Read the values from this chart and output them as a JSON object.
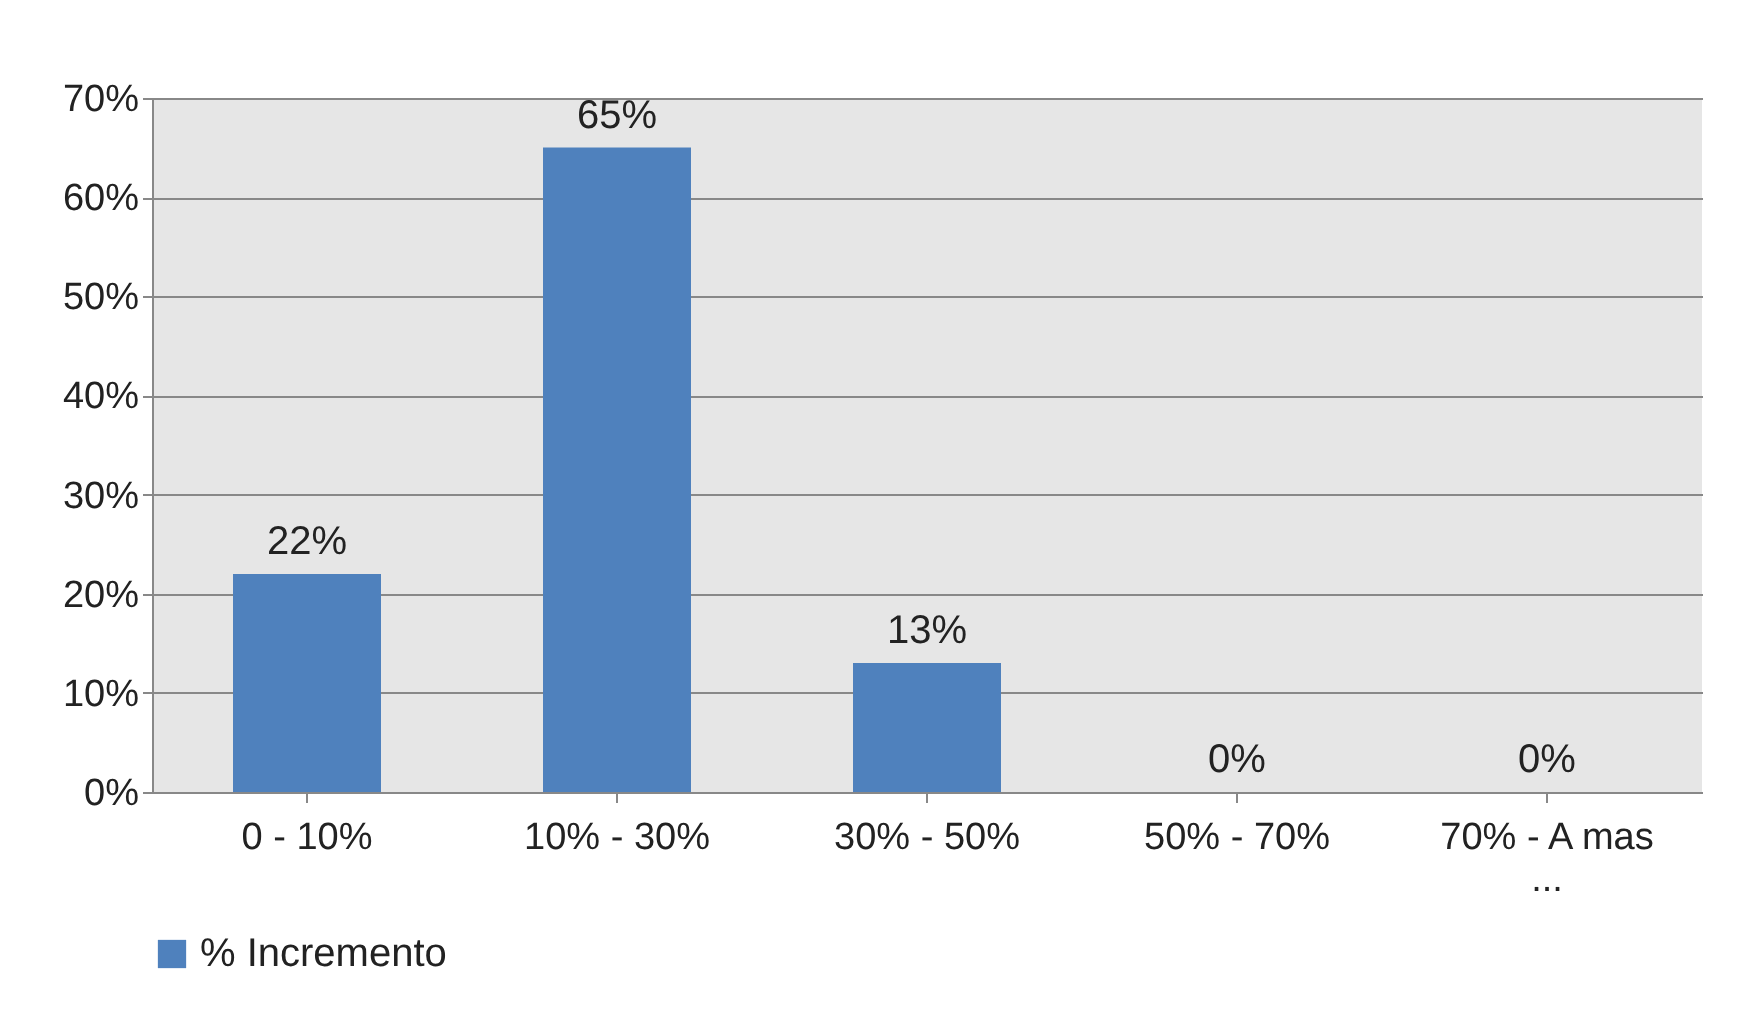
{
  "chart_data": {
    "type": "bar",
    "categories": [
      "0 - 10%",
      "10% - 30%",
      "30% - 50%",
      "50% - 70%",
      "70% - A mas\n..."
    ],
    "series": [
      {
        "name": "% Incremento",
        "color": "#4f81bd",
        "values": [
          22,
          65,
          13,
          0,
          0
        ]
      }
    ],
    "value_labels": [
      "22%",
      "65%",
      "13%",
      "0%",
      "0%"
    ],
    "ylim": [
      0,
      70
    ],
    "yticks": [
      {
        "value": 0,
        "label": "0%"
      },
      {
        "value": 10,
        "label": "10%"
      },
      {
        "value": 20,
        "label": "20%"
      },
      {
        "value": 30,
        "label": "30%"
      },
      {
        "value": 40,
        "label": "40%"
      },
      {
        "value": 50,
        "label": "50%"
      },
      {
        "value": 60,
        "label": "60%"
      },
      {
        "value": 70,
        "label": "70%"
      }
    ],
    "grid": "y",
    "legend": "bottom"
  }
}
